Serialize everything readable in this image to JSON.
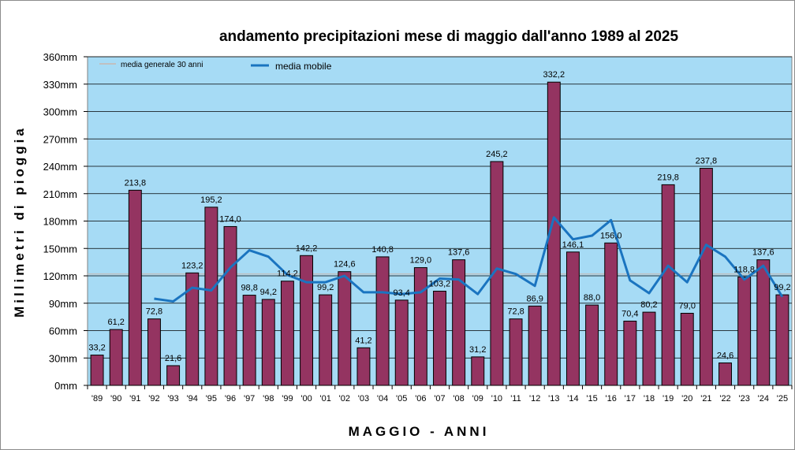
{
  "chart_data": {
    "type": "bar",
    "title": "andamento precipitazioni mese di maggio dall'anno 1989 al 2025",
    "xlabel": "MAGGIO - ANNI",
    "ylabel": "Millimetri di pioggia",
    "ylim": [
      0,
      360
    ],
    "yticks": [
      "0mm",
      "30mm",
      "60mm",
      "90mm",
      "120mm",
      "150mm",
      "180mm",
      "210mm",
      "240mm",
      "270mm",
      "300mm",
      "330mm",
      "360mm"
    ],
    "grid": true,
    "legend_position": "top-left",
    "categories": [
      "'89",
      "'90",
      "'91",
      "'92",
      "'93",
      "'94",
      "'95",
      "'96",
      "'97",
      "'98",
      "'99",
      "'00",
      "'01",
      "'02",
      "'03",
      "'04",
      "'05",
      "'06",
      "'07",
      "'08",
      "'09",
      "'10",
      "'11",
      "'12",
      "'13",
      "'14",
      "'15",
      "'16",
      "'17",
      "'18",
      "'19",
      "'20",
      "'21",
      "'22",
      "'23",
      "'24",
      "'25"
    ],
    "bars": {
      "values": [
        33.2,
        61.2,
        213.8,
        72.8,
        21.6,
        123.2,
        195.2,
        174.0,
        98.8,
        94.2,
        114.2,
        142.2,
        99.2,
        124.6,
        41.2,
        140.8,
        93.4,
        129.0,
        103.2,
        137.6,
        31.2,
        245.2,
        72.8,
        86.9,
        332.2,
        146.1,
        88.0,
        156.0,
        70.4,
        80.2,
        219.8,
        79.0,
        237.8,
        24.6,
        118.8,
        137.6,
        99.2
      ],
      "labels": [
        "33,2",
        "61,2",
        "213,8",
        "72,8",
        "21,6",
        "123,2",
        "195,2",
        "174,0",
        "98,8",
        "94,2",
        "114,2",
        "142,2",
        "99,2",
        "124,6",
        "41,2",
        "140,8",
        "93,4",
        "129,0",
        "103,2",
        "137,6",
        "31,2",
        "245,2",
        "72,8",
        "86,9",
        "332,2",
        "146,1",
        "88,0",
        "156,0",
        "70,4",
        "80,2",
        "219,8",
        "79,0",
        "237,8",
        "24,6",
        "118,8",
        "137,6",
        "99,2"
      ],
      "color": "#943461"
    },
    "series": [
      {
        "name": "media generale 30 anni",
        "color": "#c0c0c0",
        "values": [
          122,
          122,
          122,
          122,
          122,
          122,
          122,
          122,
          122,
          122,
          122,
          122,
          122,
          122,
          122,
          122,
          122,
          122,
          122,
          122,
          122,
          122,
          122,
          122,
          122,
          122,
          122,
          122,
          122,
          122,
          122,
          122,
          122,
          122,
          122,
          122,
          122
        ]
      },
      {
        "name": "media mobile",
        "color": "#1a74c0",
        "values": [
          null,
          null,
          null,
          95,
          92,
          107,
          104,
          129,
          148,
          141,
          121,
          113,
          113,
          120,
          102,
          102,
          100,
          102,
          117,
          116,
          100,
          128,
          122,
          109,
          184,
          160,
          164,
          181,
          115,
          101,
          131,
          113,
          154,
          141,
          116,
          131,
          97
        ]
      }
    ],
    "plot_background": "#a6dbf5"
  }
}
